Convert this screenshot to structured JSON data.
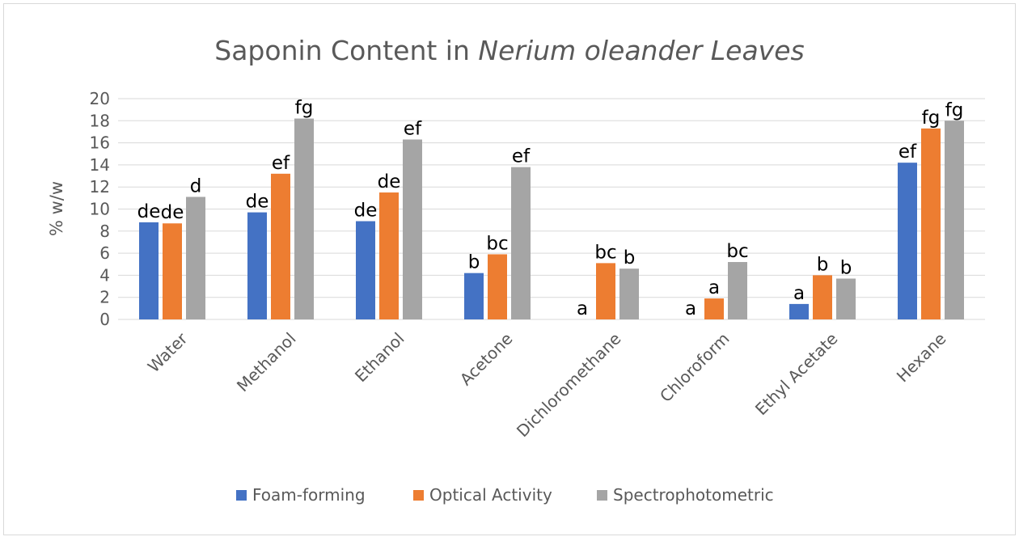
{
  "chart_data": {
    "type": "bar",
    "title": "Saponin Content in",
    "title_italic": "Nerium oleander Leaves",
    "ylabel": "% w/w",
    "xlabel": "",
    "ylim": [
      0,
      20
    ],
    "yticks": [
      0,
      2,
      4,
      6,
      8,
      10,
      12,
      14,
      16,
      18,
      20
    ],
    "grid": true,
    "legend_position": "bottom",
    "categories": [
      "Water",
      "Methanol",
      "Ethanol",
      "Acetone",
      "Dichloromethane",
      "Chloroform",
      "Ethyl Acetate",
      "Hexane"
    ],
    "series": [
      {
        "name": "Foam-forming",
        "color": "#4472c4",
        "values": [
          8.8,
          9.7,
          8.9,
          4.2,
          0,
          0,
          1.4,
          14.2
        ],
        "labels": [
          "de",
          "de",
          "de",
          "b",
          "a",
          "a",
          "a",
          "ef"
        ]
      },
      {
        "name": "Optical Activity",
        "color": "#ed7d31",
        "values": [
          8.7,
          13.2,
          11.5,
          5.9,
          5.1,
          1.9,
          4.0,
          17.3
        ],
        "labels": [
          "de",
          "ef",
          "de",
          "bc",
          "bc",
          "a",
          "b",
          "fg"
        ]
      },
      {
        "name": "Spectrophotometric",
        "color": "#a5a5a5",
        "values": [
          11.1,
          18.2,
          16.3,
          13.8,
          4.6,
          5.2,
          3.7,
          18.0
        ],
        "labels": [
          "d",
          "fg",
          "ef",
          "ef",
          "b",
          "bc",
          "b",
          "fg"
        ]
      }
    ]
  }
}
